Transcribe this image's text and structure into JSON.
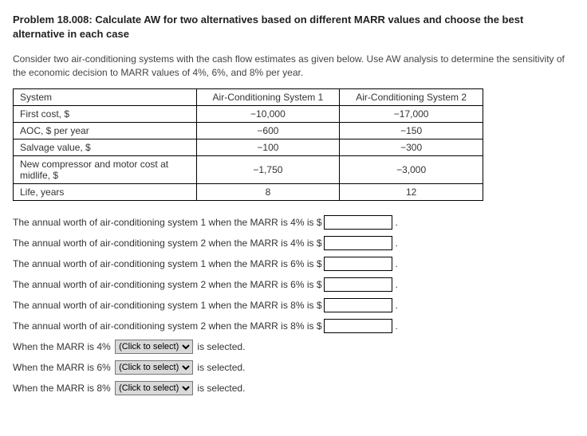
{
  "title": "Problem 18.008: Calculate AW for two alternatives based on different MARR values and choose the best alternative in each case",
  "description": "Consider two air-conditioning systems with the cash flow estimates as given below. Use AW analysis to determine the sensitivity of the economic decision to MARR values of 4%, 6%, and 8% per year.",
  "table": {
    "header": [
      "System",
      "Air-Conditioning System 1",
      "Air-Conditioning System 2"
    ],
    "rows": [
      [
        "First cost, $",
        "−10,000",
        "−17,000"
      ],
      [
        "AOC, $ per year",
        "−600",
        "−150"
      ],
      [
        "Salvage value, $",
        "−100",
        "−300"
      ],
      [
        "New compressor and motor cost at midlife, $",
        "−1,750",
        "−3,000"
      ],
      [
        "Life, years",
        "8",
        "12"
      ]
    ],
    "col_widths": [
      "230px",
      "180px",
      "180px"
    ]
  },
  "questions": [
    "The annual worth of air-conditioning system 1 when the MARR is 4% is $",
    "The annual worth of air-conditioning system 2 when the MARR is 4% is $",
    "The annual worth of air-conditioning system 1 when the MARR is 6% is $",
    "The annual worth of air-conditioning system 2 when the MARR is 6% is $",
    "The annual worth of air-conditioning system 1 when the MARR is 8% is $",
    "The annual worth of air-conditioning system 2 when the MARR is 8% is $"
  ],
  "selections": [
    {
      "pre": "When the MARR is 4%",
      "placeholder": "(Click to select)",
      "post": "is selected."
    },
    {
      "pre": "When the MARR is 6%",
      "placeholder": "(Click to select)",
      "post": "is selected."
    },
    {
      "pre": "When the MARR is 8%",
      "placeholder": "(Click to select)",
      "post": "is selected."
    }
  ],
  "colors": {
    "text": "#333333",
    "border": "#000000",
    "select_bg": "#d9d9d9"
  }
}
